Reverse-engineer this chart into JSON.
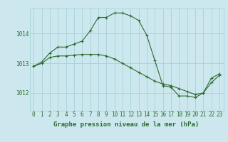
{
  "title": "Graphe pression niveau de la mer (hPa)",
  "background_color": "#cce8ee",
  "line_color": "#2d6a2d",
  "grid_color": "#9ecdd6",
  "xlim": [
    -0.5,
    23.5
  ],
  "ylim": [
    1011.4,
    1014.85
  ],
  "yticks": [
    1012,
    1013,
    1014
  ],
  "xticks": [
    0,
    1,
    2,
    3,
    4,
    5,
    6,
    7,
    8,
    9,
    10,
    11,
    12,
    13,
    14,
    15,
    16,
    17,
    18,
    19,
    20,
    21,
    22,
    23
  ],
  "series1_x": [
    0,
    1,
    2,
    3,
    4,
    5,
    6,
    7,
    8,
    9,
    10,
    11,
    12,
    13,
    14,
    15,
    16,
    17,
    18,
    19,
    20,
    21,
    22,
    23
  ],
  "series1_y": [
    1012.9,
    1013.05,
    1013.35,
    1013.55,
    1013.55,
    1013.65,
    1013.75,
    1014.1,
    1014.55,
    1014.55,
    1014.7,
    1014.7,
    1014.6,
    1014.45,
    1013.95,
    1013.1,
    1012.25,
    1012.2,
    1011.9,
    1011.9,
    1011.85,
    1012.0,
    1012.5,
    1012.65
  ],
  "series2_x": [
    0,
    1,
    2,
    3,
    4,
    5,
    6,
    7,
    8,
    9,
    10,
    11,
    12,
    13,
    14,
    15,
    16,
    17,
    18,
    19,
    20,
    21,
    22,
    23
  ],
  "series2_y": [
    1012.9,
    1013.0,
    1013.2,
    1013.25,
    1013.25,
    1013.28,
    1013.3,
    1013.3,
    1013.3,
    1013.25,
    1013.15,
    1013.0,
    1012.85,
    1012.7,
    1012.55,
    1012.4,
    1012.3,
    1012.25,
    1012.15,
    1012.05,
    1011.95,
    1012.0,
    1012.35,
    1012.6
  ],
  "marker_style": "+",
  "marker_size": 3,
  "line_width": 0.8,
  "tick_fontsize": 5.5,
  "title_fontsize": 6.5
}
